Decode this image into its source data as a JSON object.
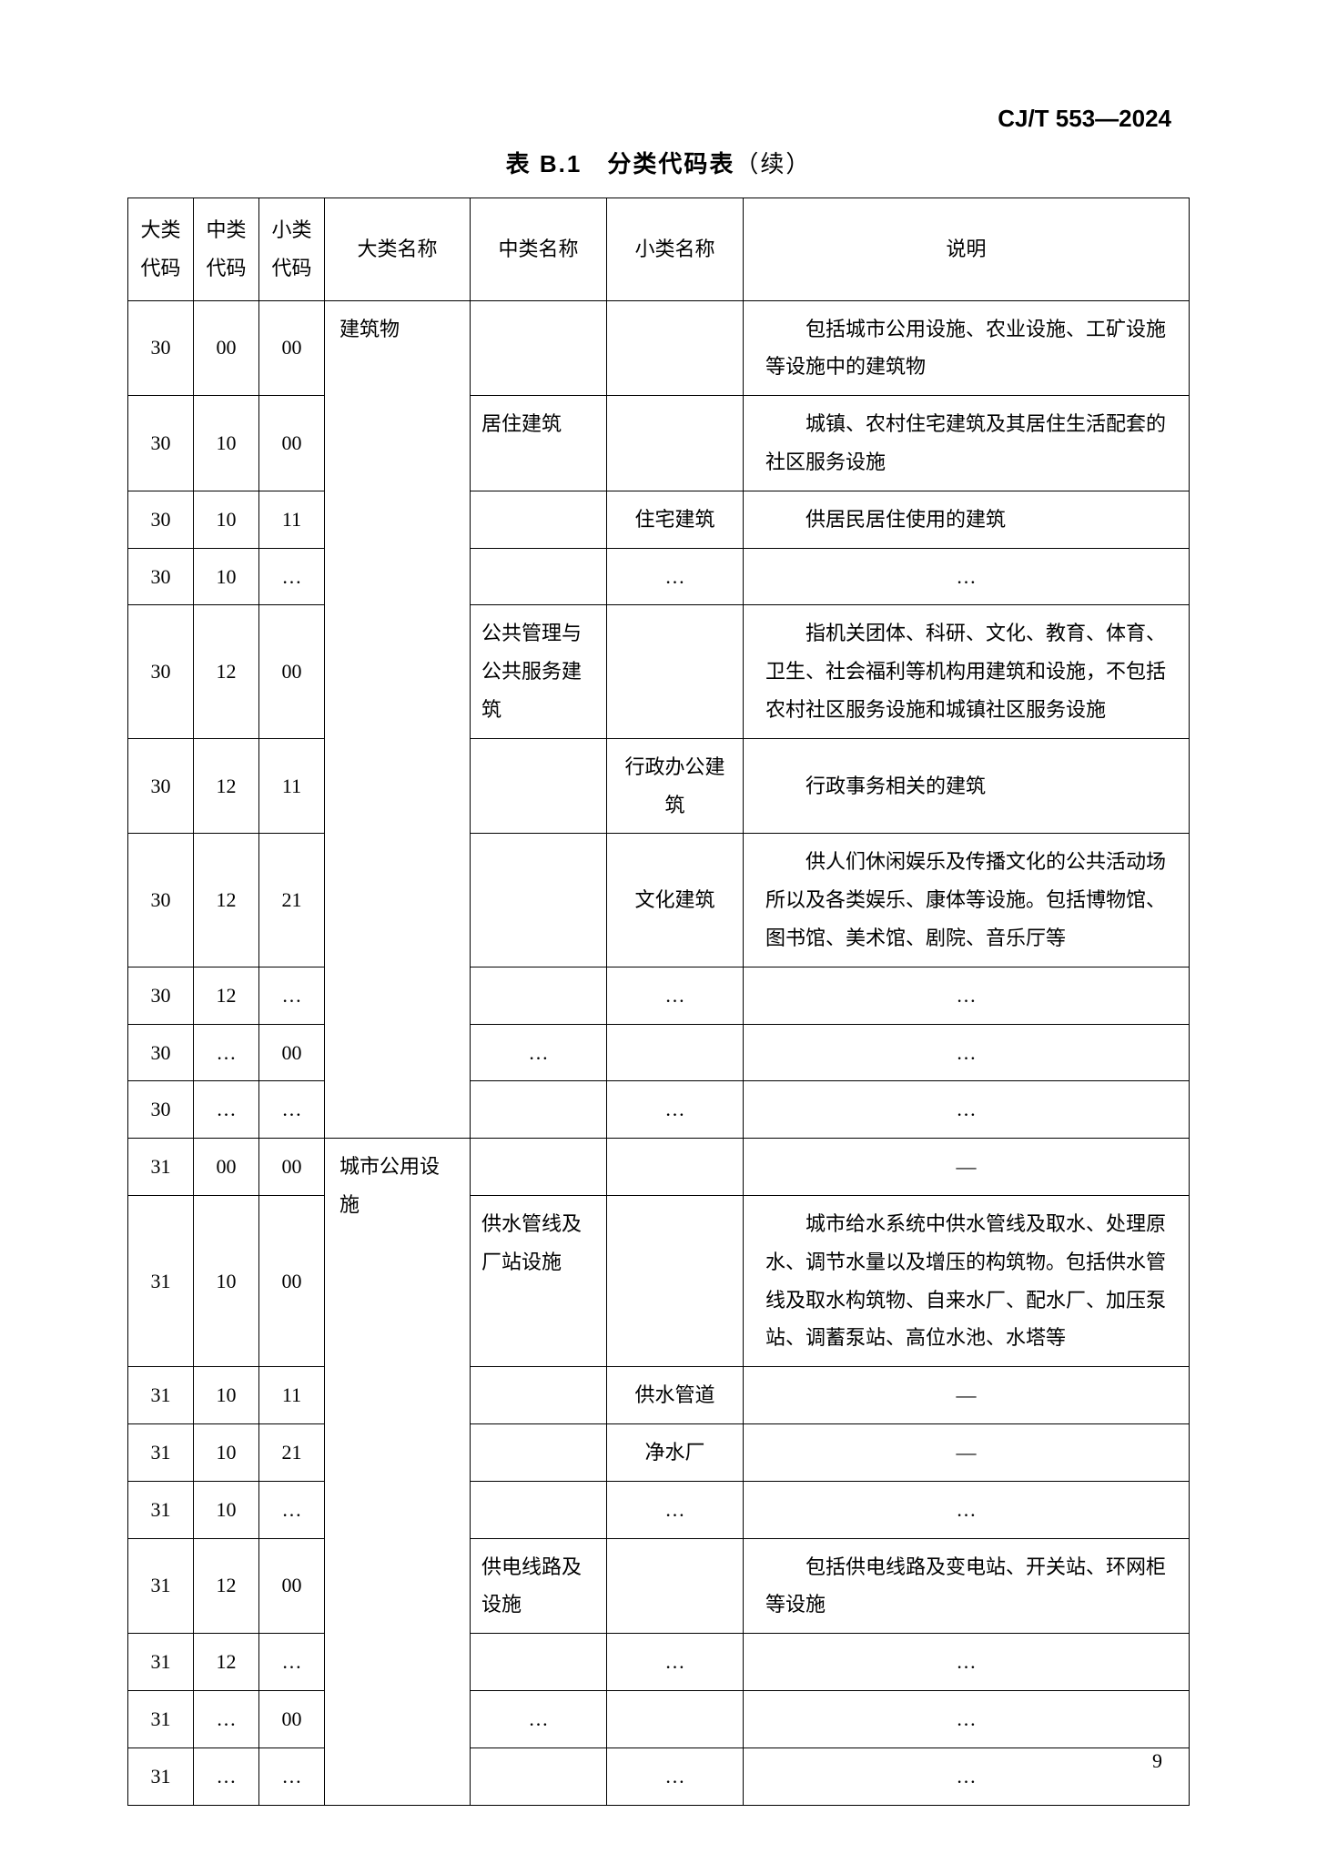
{
  "doc_code": "CJ/T 553—2024",
  "table_title": "表 B.1　分类代码表",
  "table_title_suffix": "（续）",
  "page_number": "9",
  "columns": {
    "c1": "大类代码",
    "c2": "中类代码",
    "c3": "小类代码",
    "c4": "大类名称",
    "c5": "中类名称",
    "c6": "小类名称",
    "c7": "说明"
  },
  "rows": [
    {
      "a": "30",
      "b": "00",
      "c": "00",
      "d": "建筑物",
      "e": "",
      "f": "",
      "g": "包括城市公用设施、农业设施、工矿设施等设施中的建筑物",
      "g_align": "desc"
    },
    {
      "a": "30",
      "b": "10",
      "c": "00",
      "d": "",
      "e": "居住建筑",
      "f": "",
      "g": "城镇、农村住宅建筑及其居住生活配套的社区服务设施",
      "g_align": "desc"
    },
    {
      "a": "30",
      "b": "10",
      "c": "11",
      "d": "",
      "e": "",
      "f": "住宅建筑",
      "g": "供居民居住使用的建筑",
      "g_align": "desc"
    },
    {
      "a": "30",
      "b": "10",
      "c": "…",
      "d": "",
      "e": "",
      "f": "…",
      "g": "…",
      "g_align": "center"
    },
    {
      "a": "30",
      "b": "12",
      "c": "00",
      "d": "",
      "e": "公共管理与公共服务建筑",
      "f": "",
      "g": "指机关团体、科研、文化、教育、体育、卫生、社会福利等机构用建筑和设施，不包括农村社区服务设施和城镇社区服务设施",
      "g_align": "desc"
    },
    {
      "a": "30",
      "b": "12",
      "c": "11",
      "d": "",
      "e": "",
      "f": "行政办公建筑",
      "g": "行政事务相关的建筑",
      "g_align": "desc"
    },
    {
      "a": "30",
      "b": "12",
      "c": "21",
      "d": "",
      "e": "",
      "f": "文化建筑",
      "g": "供人们休闲娱乐及传播文化的公共活动场所以及各类娱乐、康体等设施。包括博物馆、图书馆、美术馆、剧院、音乐厅等",
      "g_align": "desc"
    },
    {
      "a": "30",
      "b": "12",
      "c": "…",
      "d": "",
      "e": "",
      "f": "…",
      "g": "…",
      "g_align": "center"
    },
    {
      "a": "30",
      "b": "…",
      "c": "00",
      "d": "",
      "e": "…",
      "f": "",
      "g": "…",
      "g_align": "center",
      "e_align": "center"
    },
    {
      "a": "30",
      "b": "…",
      "c": "…",
      "d": "",
      "e": "",
      "f": "…",
      "g": "…",
      "g_align": "center"
    },
    {
      "a": "31",
      "b": "00",
      "c": "00",
      "d": "城市公用设施",
      "e": "",
      "f": "",
      "g": "—",
      "g_align": "center"
    },
    {
      "a": "31",
      "b": "10",
      "c": "00",
      "d": "",
      "e": "供水管线及厂站设施",
      "f": "",
      "g": "城市给水系统中供水管线及取水、处理原水、调节水量以及增压的构筑物。包括供水管线及取水构筑物、自来水厂、配水厂、加压泵站、调蓄泵站、高位水池、水塔等",
      "g_align": "desc"
    },
    {
      "a": "31",
      "b": "10",
      "c": "11",
      "d": "",
      "e": "",
      "f": "供水管道",
      "g": "—",
      "g_align": "center"
    },
    {
      "a": "31",
      "b": "10",
      "c": "21",
      "d": "",
      "e": "",
      "f": "净水厂",
      "g": "—",
      "g_align": "center"
    },
    {
      "a": "31",
      "b": "10",
      "c": "…",
      "d": "",
      "e": "",
      "f": "…",
      "g": "…",
      "g_align": "center"
    },
    {
      "a": "31",
      "b": "12",
      "c": "00",
      "d": "",
      "e": "供电线路及设施",
      "f": "",
      "g": "包括供电线路及变电站、开关站、环网柜等设施",
      "g_align": "desc"
    },
    {
      "a": "31",
      "b": "12",
      "c": "…",
      "d": "",
      "e": "",
      "f": "…",
      "g": "…",
      "g_align": "center"
    },
    {
      "a": "31",
      "b": "…",
      "c": "00",
      "d": "",
      "e": "…",
      "f": "",
      "g": "…",
      "g_align": "center",
      "e_align": "center"
    },
    {
      "a": "31",
      "b": "…",
      "c": "…",
      "d": "",
      "e": "",
      "f": "…",
      "g": "…",
      "g_align": "center"
    }
  ]
}
